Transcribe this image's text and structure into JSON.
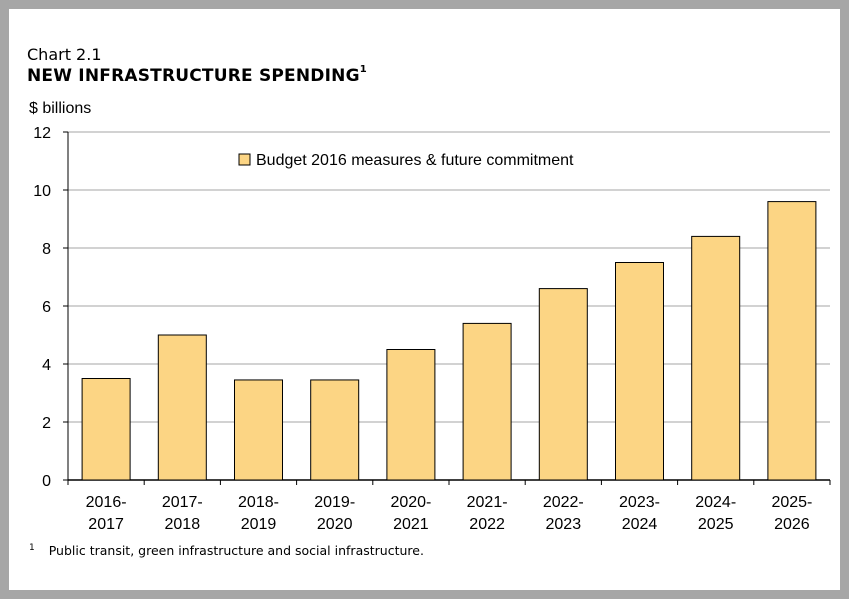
{
  "chart_label": "Chart 2.1",
  "chart_title": "NEW INFRASTRUCTURE SPENDING",
  "title_footnote_mark": "1",
  "footnote_mark": "1",
  "footnote_text": "Public transit, green infrastructure and social infrastructure.",
  "colors": {
    "bar_fill": "#fcd584",
    "bar_stroke": "#000000",
    "grid": "#a6a6a6",
    "frame": "#a6a6a6"
  },
  "chart_data": {
    "type": "bar",
    "title": "NEW INFRASTRUCTURE SPENDING",
    "ylabel": "$ billions",
    "xlabel": "",
    "ylim": [
      0,
      12
    ],
    "yticks": [
      0,
      2,
      4,
      6,
      8,
      10,
      12
    ],
    "grid": true,
    "legend_position": "top-center",
    "categories": [
      [
        "2016-",
        "2017"
      ],
      [
        "2017-",
        "2018"
      ],
      [
        "2018-",
        "2019"
      ],
      [
        "2019-",
        "2020"
      ],
      [
        "2020-",
        "2021"
      ],
      [
        "2021-",
        "2022"
      ],
      [
        "2022-",
        "2023"
      ],
      [
        "2023-",
        "2024"
      ],
      [
        "2024-",
        "2025"
      ],
      [
        "2025-",
        "2026"
      ]
    ],
    "series": [
      {
        "name": "Budget 2016 measures & future commitment",
        "values": [
          3.5,
          5.0,
          3.45,
          3.45,
          4.5,
          5.4,
          6.6,
          7.5,
          8.4,
          9.6
        ]
      }
    ]
  }
}
